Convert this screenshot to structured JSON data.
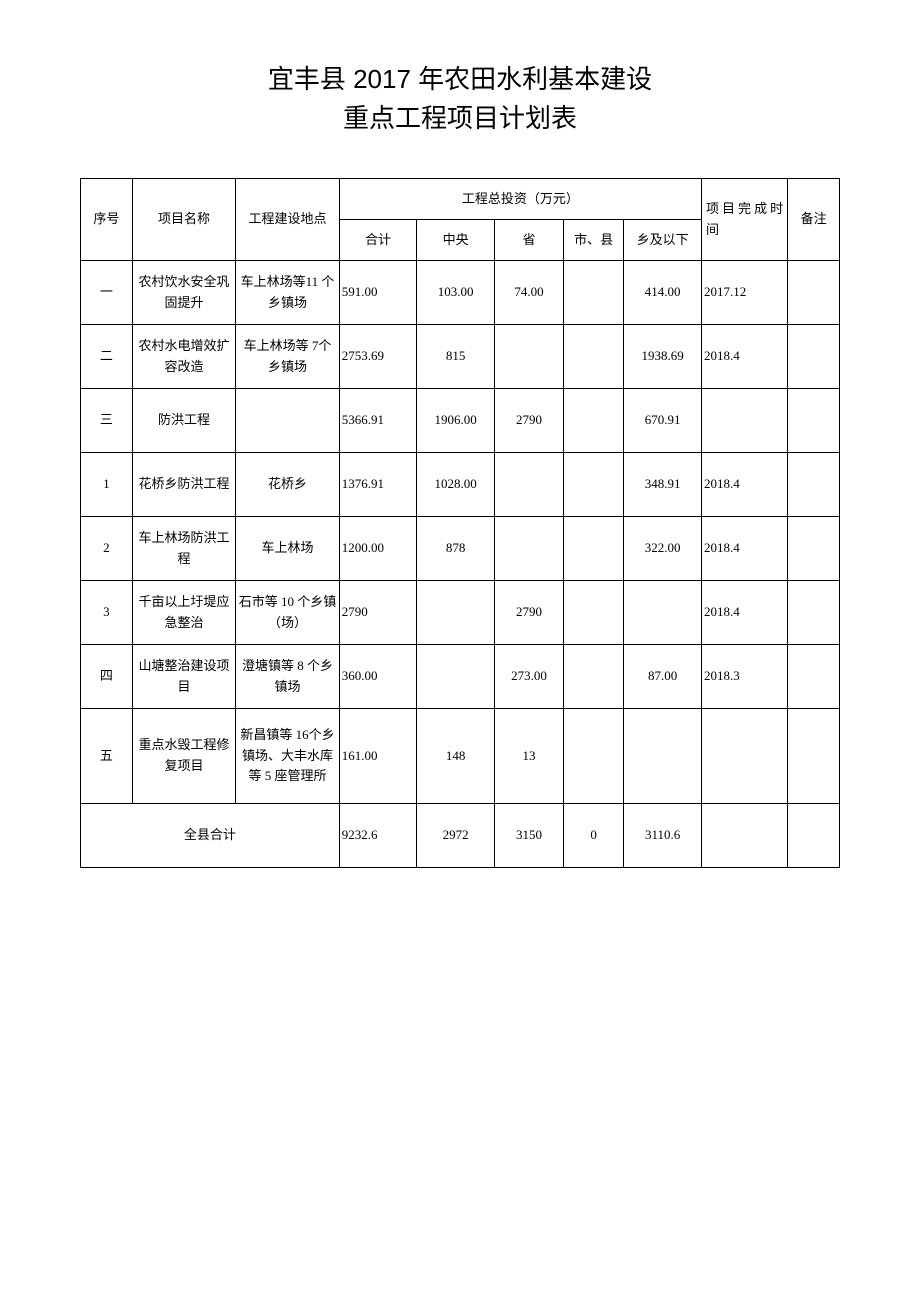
{
  "title_line1": "宜丰县 2017 年农田水利基本建设",
  "title_line2": "重点工程项目计划表",
  "headers": {
    "seq": "序号",
    "name": "项目名称",
    "loc": "工程建设地点",
    "invest_group": "工程总投资（万元）",
    "total": "合计",
    "central": "中央",
    "prov": "省",
    "city": "市、县",
    "below": "乡及以下",
    "finish": "项目完成时间",
    "remark": "备注"
  },
  "rows": [
    {
      "seq": "一",
      "name": "农村饮水安全巩固提升",
      "loc": "车上林场等11 个乡镇场",
      "total": "591.00",
      "central": "103.00",
      "prov": "74.00",
      "city": "",
      "below": "414.00",
      "finish": "2017.12",
      "remark": ""
    },
    {
      "seq": "二",
      "name": "农村水电增效扩容改造",
      "loc": "车上林场等 7个乡镇场",
      "total": "2753.69",
      "central": "815",
      "prov": "",
      "city": "",
      "below": "1938.69",
      "finish": "2018.4",
      "remark": ""
    },
    {
      "seq": "三",
      "name": "防洪工程",
      "loc": "",
      "total": "5366.91",
      "central": "1906.00",
      "prov": "2790",
      "city": "",
      "below": "670.91",
      "finish": "",
      "remark": ""
    },
    {
      "seq": "1",
      "name": "花桥乡防洪工程",
      "loc": "花桥乡",
      "total": "1376.91",
      "central": "1028.00",
      "prov": "",
      "city": "",
      "below": "348.91",
      "finish": "2018.4",
      "remark": ""
    },
    {
      "seq": "2",
      "name": "车上林场防洪工程",
      "loc": "车上林场",
      "total": "1200.00",
      "central": "878",
      "prov": "",
      "city": "",
      "below": "322.00",
      "finish": "2018.4",
      "remark": ""
    },
    {
      "seq": "3",
      "name": "千亩以上圩堤应急整治",
      "loc": "石市等 10 个乡镇（场）",
      "total": "2790",
      "central": "",
      "prov": "2790",
      "city": "",
      "below": "",
      "finish": "2018.4",
      "remark": ""
    },
    {
      "seq": "四",
      "name": "山塘整治建设项目",
      "loc": "澄塘镇等 8 个乡镇场",
      "total": "360.00",
      "central": "",
      "prov": "273.00",
      "city": "",
      "below": "87.00",
      "finish": "2018.3",
      "remark": ""
    },
    {
      "seq": "五",
      "name": "重点水毁工程修复项目",
      "loc": "新昌镇等 16个乡镇场、大丰水库等 5 座管理所",
      "total": "161.00",
      "central": "148",
      "prov": "13",
      "city": "",
      "below": "",
      "finish": "",
      "remark": ""
    }
  ],
  "footer": {
    "label": "全县合计",
    "total": "9232.6",
    "central": "2972",
    "prov": "3150",
    "city": "0",
    "below": "3110.6",
    "finish": "",
    "remark": ""
  }
}
